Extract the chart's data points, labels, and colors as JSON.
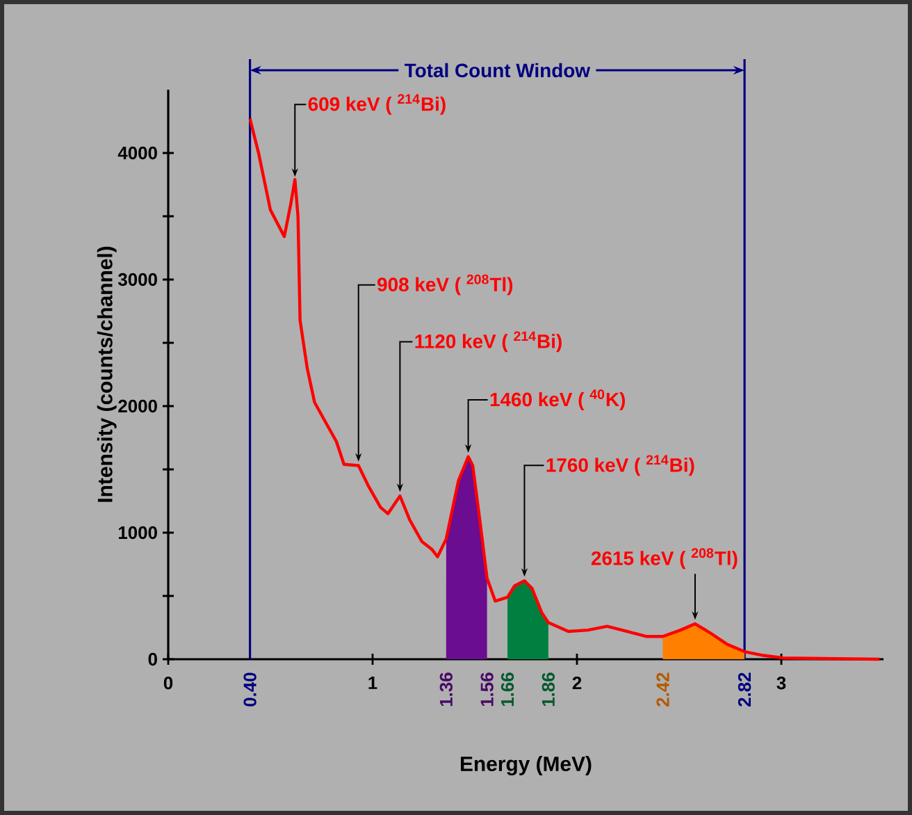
{
  "chart_data": {
    "type": "line",
    "xlabel": "Energy (MeV)",
    "ylabel": "Intensity (counts/channel)",
    "xlim": [
      0,
      3.5
    ],
    "ylim": [
      0,
      4500
    ],
    "xticks": [
      0,
      1,
      2,
      3
    ],
    "yticks": [
      0,
      {
        "value": 500,
        "label": null
      },
      1000,
      {
        "value": 1500,
        "label": null
      },
      2000,
      {
        "value": 2500,
        "label": null
      },
      3000,
      {
        "value": 3500,
        "label": null
      },
      4000
    ],
    "series": [
      {
        "color": "#ff0000",
        "x": [
          0.4,
          0.442,
          0.5,
          0.568,
          0.6,
          0.62,
          0.635,
          0.645,
          0.68,
          0.716,
          0.764,
          0.823,
          0.86,
          0.931,
          0.979,
          1.039,
          1.075,
          1.134,
          1.182,
          1.241,
          1.289,
          1.318,
          1.36,
          1.42,
          1.468,
          1.49,
          1.527,
          1.56,
          1.6,
          1.66,
          1.695,
          1.743,
          1.78,
          1.827,
          1.86,
          1.958,
          2.053,
          2.148,
          2.244,
          2.339,
          2.42,
          2.507,
          2.578,
          2.65,
          2.733,
          2.82,
          2.912,
          3.008,
          3.48
        ],
        "values": [
          4270,
          4000,
          3550,
          3340,
          3600,
          3790,
          3500,
          2680,
          2300,
          2030,
          1890,
          1720,
          1540,
          1530,
          1370,
          1200,
          1150,
          1290,
          1100,
          930,
          870,
          810,
          950,
          1410,
          1600,
          1530,
          1070,
          640,
          460,
          490,
          580,
          620,
          560,
          370,
          290,
          220,
          230,
          260,
          220,
          180,
          180,
          230,
          280,
          210,
          120,
          60,
          30,
          10,
          0
        ]
      },
      {
        "type": "area",
        "color": "#6a0d91",
        "x": [
          1.36,
          1.42,
          1.468,
          1.49,
          1.527,
          1.56
        ],
        "values": [
          950,
          1410,
          1600,
          1530,
          1070,
          640
        ]
      },
      {
        "type": "area",
        "color": "#008040",
        "x": [
          1.66,
          1.695,
          1.743,
          1.78,
          1.827,
          1.86
        ],
        "values": [
          490,
          580,
          620,
          560,
          370,
          290
        ]
      },
      {
        "type": "area",
        "color": "#ff8000",
        "x": [
          2.42,
          2.507,
          2.578,
          2.65,
          2.733,
          2.82
        ],
        "values": [
          180,
          230,
          280,
          210,
          120,
          60
        ]
      }
    ],
    "ref_lines": [
      {
        "axis": "x",
        "value": 0.4,
        "color": "#000080",
        "label": "0.40"
      },
      {
        "axis": "x",
        "value": 2.82,
        "color": "#000080",
        "label": "2.82"
      }
    ],
    "annotations": [
      "Total Count Window",
      {
        "text": "609 keV ( $^{214}$Bi)",
        "x": 0.62,
        "y": 3790
      },
      {
        "text": "908 keV ( $^{208}$Tl)",
        "x": 0.931,
        "y": 1540
      },
      {
        "text": "1120 keV ( $^{214}$Bi)",
        "x": 1.134,
        "y": 1300
      },
      {
        "text": "1460 keV ( $^{40}$K)",
        "x": 1.468,
        "y": 1610
      },
      {
        "text": "1760 keV ( $^{214}$Bi)",
        "x": 1.743,
        "y": 630
      },
      {
        "text": "2615 keV ( $^{208}$Tl)",
        "x": 2.578,
        "y": 290
      },
      {
        "text": "1.36",
        "x": 1.36,
        "y": 0
      },
      {
        "text": "1.56",
        "x": 1.56,
        "y": 0
      },
      {
        "text": "1.66",
        "x": 1.66,
        "y": 0
      },
      {
        "text": "1.86",
        "x": 1.86,
        "y": 0
      },
      {
        "text": "2.42",
        "x": 2.42,
        "y": 0
      }
    ]
  }
}
